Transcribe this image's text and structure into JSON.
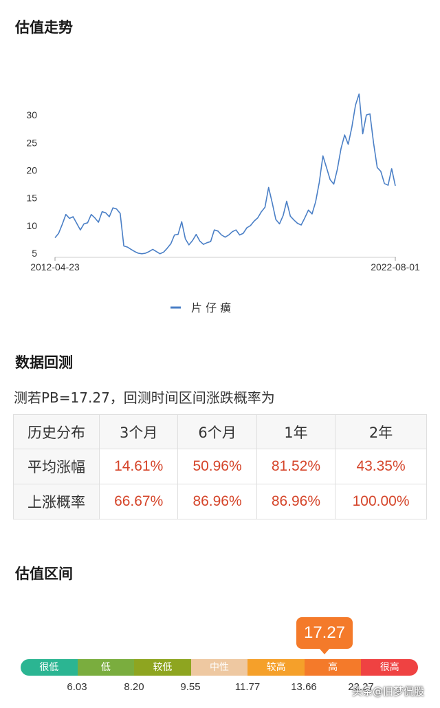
{
  "sections": {
    "trend_title": "估值走势",
    "backtest_title": "数据回测",
    "range_title": "估值区间"
  },
  "chart_data": {
    "type": "line",
    "x_start_label": "2012-04-23",
    "x_end_label": "2022-08-01",
    "yticks": [
      5,
      10,
      15,
      20,
      25,
      30
    ],
    "ylim": [
      4.5,
      34
    ],
    "series": [
      {
        "name": "片 仔 癀",
        "color": "#4a7fc6",
        "values": [
          7.8,
          8.6,
          10.2,
          12.0,
          11.3,
          11.6,
          10.4,
          9.2,
          10.3,
          10.5,
          12.0,
          11.4,
          10.6,
          12.5,
          12.3,
          11.6,
          13.2,
          13.0,
          12.2,
          6.3,
          6.1,
          5.7,
          5.3,
          5.0,
          4.9,
          5.0,
          5.3,
          5.7,
          5.3,
          4.9,
          5.2,
          5.9,
          6.7,
          8.3,
          8.4,
          10.7,
          7.6,
          6.5,
          7.3,
          8.4,
          7.2,
          6.6,
          6.9,
          7.1,
          9.2,
          9.0,
          8.3,
          7.9,
          8.3,
          8.9,
          9.2,
          8.3,
          8.6,
          9.6,
          10.0,
          10.8,
          11.4,
          12.5,
          13.3,
          16.9,
          14.1,
          11.1,
          10.3,
          11.8,
          14.4,
          11.7,
          11.0,
          10.4,
          10.1,
          11.4,
          12.8,
          12.1,
          14.3,
          17.8,
          22.6,
          20.5,
          18.3,
          17.5,
          20.2,
          23.9,
          26.4,
          24.7,
          27.8,
          31.8,
          33.8,
          26.6,
          30.0,
          30.2,
          24.9,
          20.5,
          19.8,
          17.6,
          17.3,
          20.3,
          17.2
        ]
      }
    ]
  },
  "backtest": {
    "description": "测若PB=17.27，回测时间区间涨跌概率为",
    "header": [
      "历史分布",
      "3个月",
      "6个月",
      "1年",
      "2年"
    ],
    "rows": [
      {
        "label": "平均涨幅",
        "values": [
          "14.61%",
          "50.96%",
          "81.52%",
          "43.35%"
        ]
      },
      {
        "label": "上涨概率",
        "values": [
          "66.67%",
          "86.96%",
          "86.96%",
          "100.00%"
        ]
      }
    ]
  },
  "range": {
    "current": "17.27",
    "segments": [
      {
        "label": "很低",
        "color": "#2bb592"
      },
      {
        "label": "低",
        "color": "#7aad3e"
      },
      {
        "label": "较低",
        "color": "#8ea520"
      },
      {
        "label": "中性",
        "color": "#eec8a1"
      },
      {
        "label": "较高",
        "color": "#f5a02a"
      },
      {
        "label": "高",
        "color": "#f47a2a"
      },
      {
        "label": "很高",
        "color": "#ef4242"
      }
    ],
    "bounds": [
      "6.03",
      "8.20",
      "9.55",
      "11.77",
      "13.66",
      "22.27"
    ]
  },
  "watermark": "头条@旧梦侃股"
}
